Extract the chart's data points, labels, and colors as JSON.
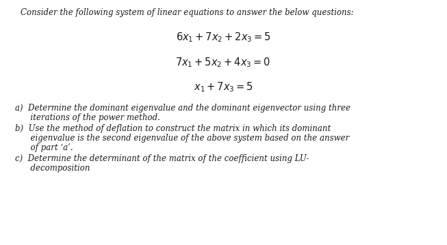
{
  "bg_color": "#ffffff",
  "text_color": "#1a1a1a",
  "title": "Consider the following system of linear equations to answer the below questions:",
  "eq1": "$6x_1 + 7x_2 + 2x_3 = 5$",
  "eq2": "$7x_1 + 5x_2 + 4x_3 = 0$",
  "eq3": "$x_1 + 7x_3 = 5$",
  "part_a_1": "a)  Determine the dominant eigenvalue and the dominant eigenvector using three",
  "part_a_2": "      iterations of the power method.",
  "part_b_1": "b)  Use the method of deflation to construct the matrix in which its dominant",
  "part_b_2": "      eigenvalue is the second eigenvalue of the above system based on the answer",
  "part_b_3": "      of part ‘a’.",
  "part_c_1": "c)  Determine the determinant of the matrix of the coefficient using LU-",
  "part_c_2": "      decomposition",
  "title_fontsize": 8.5,
  "eq_fontsize": 10.5,
  "body_fontsize": 8.5,
  "fig_width": 6.53,
  "fig_height": 3.59,
  "dpi": 100
}
